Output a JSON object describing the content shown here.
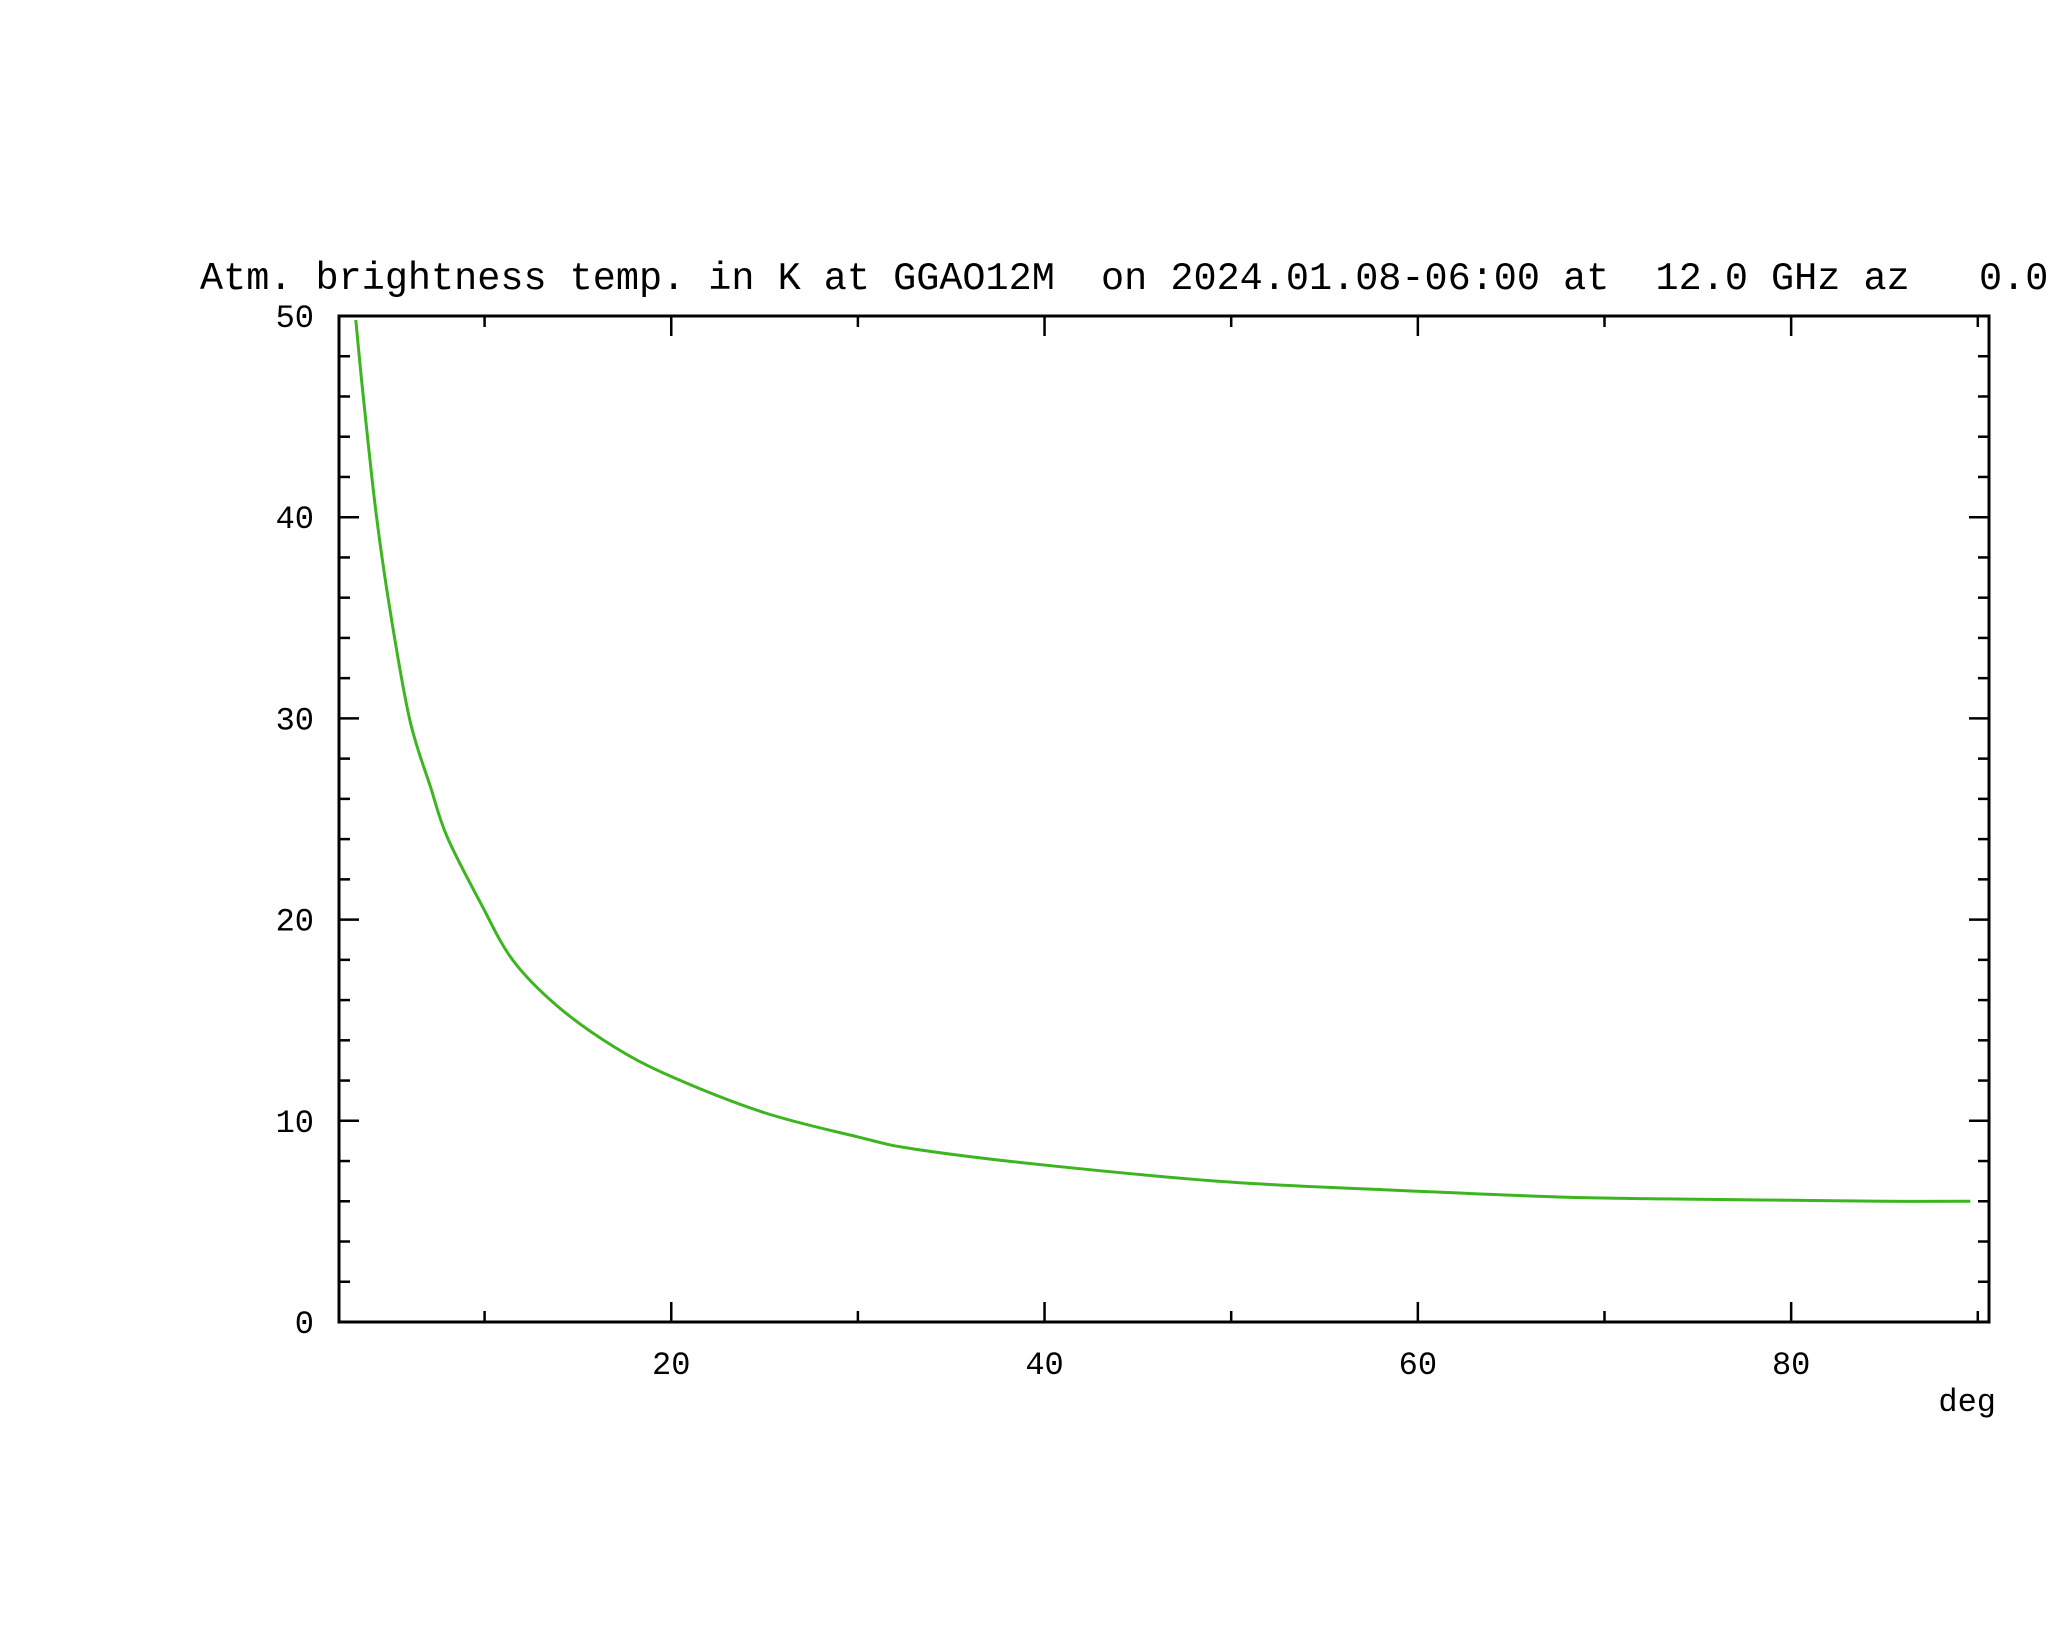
{
  "chart_data": {
    "type": "line",
    "title": "Atm. brightness temp. in K at GGAO12M  on 2024.01.08-06:00 at  12.0 GHz az   0.0",
    "xlabel": "deg",
    "ylabel": "",
    "xlim": [
      2.2,
      90.6
    ],
    "ylim": [
      0,
      50
    ],
    "x_major_ticks": [
      20,
      40,
      60,
      80
    ],
    "x_tick_labels": [
      "20",
      "40",
      "60",
      "80"
    ],
    "x_minor_step": 10,
    "y_major_ticks": [
      0,
      10,
      20,
      30,
      40,
      50
    ],
    "y_tick_labels": [
      "0",
      "10",
      "20",
      "30",
      "40",
      "50"
    ],
    "y_minor_step": 2,
    "grid": false,
    "series": [
      {
        "color": "#3cb521",
        "x": [
          3.1,
          3.5,
          4.2,
          5.0,
          6.0,
          7.1,
          8.0,
          9.8,
          11.5,
          13.9,
          16.9,
          20,
          25,
          30,
          33,
          40,
          50,
          60,
          68,
          75,
          80,
          85,
          89.6
        ],
        "y": [
          49.8,
          46.0,
          40.1,
          35.0,
          29.9,
          26.6,
          24.1,
          20.8,
          18.0,
          15.7,
          13.7,
          12.2,
          10.4,
          9.2,
          8.6,
          7.8,
          6.95,
          6.5,
          6.2,
          6.1,
          6.05,
          6.0,
          6.0
        ]
      }
    ]
  }
}
